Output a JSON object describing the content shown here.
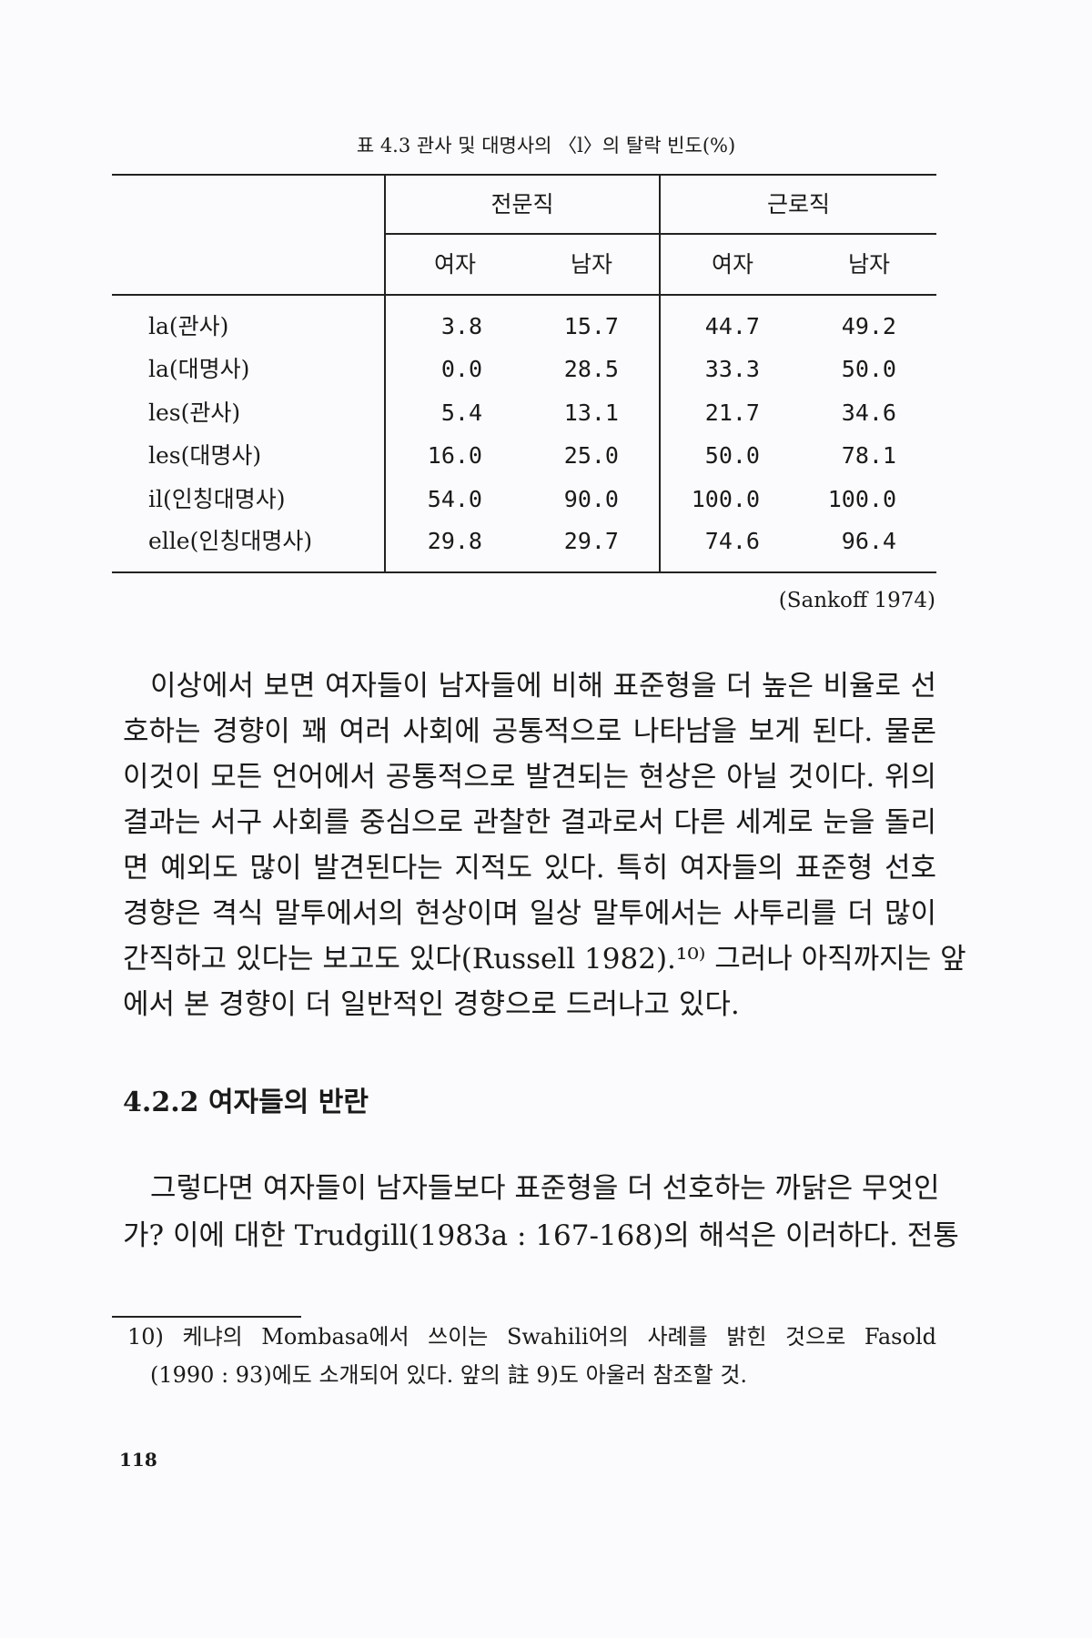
{
  "table": {
    "caption": "표 4.3  관사 및 대명사의 〈l〉의 탈락 빈도(%)",
    "groups": [
      "전문직",
      "근로직"
    ],
    "subheaders": [
      "여자",
      "남자",
      "여자",
      "남자"
    ],
    "rows": [
      {
        "label": "la(관사)",
        "values": [
          "3.8",
          "15.7",
          "44.7",
          "49.2"
        ]
      },
      {
        "label": "la(대명사)",
        "values": [
          "0.0",
          "28.5",
          "33.3",
          "50.0"
        ]
      },
      {
        "label": "les(관사)",
        "values": [
          "5.4",
          "13.1",
          "21.7",
          "34.6"
        ]
      },
      {
        "label": "les(대명사)",
        "values": [
          "16.0",
          "25.0",
          "50.0",
          "78.1"
        ]
      },
      {
        "label": "il(인칭대명사)",
        "values": [
          "54.0",
          "90.0",
          "100.0",
          "100.0"
        ]
      },
      {
        "label": "elle(인칭대명사)",
        "values": [
          "29.8",
          "29.7",
          "74.6",
          "96.4"
        ]
      }
    ],
    "source": "(Sankoff 1974)"
  },
  "paragraph1": [
    "이상에서 보면 여자들이 남자들에 비해 표준형을 더 높은 비율로 선",
    "호하는 경향이 꽤 여러 사회에 공통적으로 나타남을 보게 된다. 물론",
    "이것이 모든 언어에서 공통적으로 발견되는 현상은 아닐 것이다. 위의",
    "결과는 서구 사회를 중심으로 관찰한 결과로서 다른 세계로 눈을 돌리",
    "면 예외도 많이 발견된다는 지적도 있다. 특히 여자들의 표준형 선호",
    "경향은 격식 말투에서의 현상이며 일상 말투에서는 사투리를 더 많이",
    "간직하고 있다는 보고도 있다(Russell 1982).¹⁰⁾ 그러나 아직까지는 앞",
    "에서 본 경향이 더 일반적인 경향으로 드러나고 있다."
  ],
  "section_heading": "4.2.2 여자들의 반란",
  "paragraph2": [
    "그렇다면 여자들이 남자들보다 표준형을 더 선호하는 까닭은 무엇인",
    "가? 이에 대한 Trudgill(1983a : 167-168)의 해석은 이러하다. 전통"
  ],
  "footnote": [
    "10) 케냐의 Mombasa에서 쓰이는 Swahili어의 사례를 밝힌 것으로 Fasold",
    "(1990 : 93)에도 소개되어 있다. 앞의 註 9)도 아울러 참조할 것."
  ],
  "page_number": "118"
}
